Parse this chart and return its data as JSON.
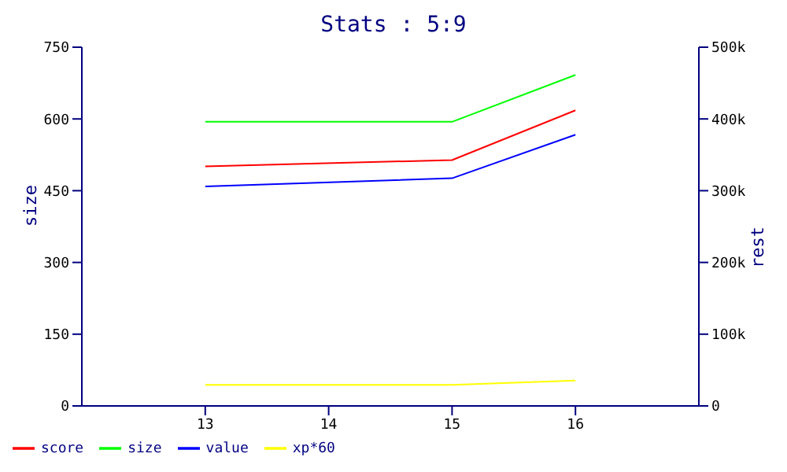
{
  "chart_data": {
    "type": "line",
    "title": "Stats : 5:9",
    "ylabel": "size",
    "y2label": "rest",
    "x": [
      13,
      15,
      16
    ],
    "xlim": [
      12,
      17
    ],
    "xticks": [
      13,
      14,
      15,
      16
    ],
    "ylim": [
      0,
      750
    ],
    "yticks": [
      0,
      150,
      300,
      450,
      600,
      750
    ],
    "y2lim": [
      0,
      500000
    ],
    "y2ticks": [
      {
        "value": 0,
        "label": "0"
      },
      {
        "value": 100000,
        "label": "100k"
      },
      {
        "value": 200000,
        "label": "200k"
      },
      {
        "value": 300000,
        "label": "300k"
      },
      {
        "value": 400000,
        "label": "400k"
      },
      {
        "value": 500000,
        "label": "500k"
      }
    ],
    "series": [
      {
        "name": "score",
        "color": "#ff0000",
        "values": [
          501,
          514,
          618
        ]
      },
      {
        "name": "size",
        "color": "#00ff00",
        "values": [
          594,
          594,
          692
        ]
      },
      {
        "name": "value",
        "color": "#0000ff",
        "values": [
          459,
          476,
          567
        ]
      },
      {
        "name": "xp*60",
        "color": "#ffff00",
        "values": [
          44,
          44,
          53
        ]
      }
    ],
    "legend": "bottom left",
    "marker": "none",
    "line_style": "solid"
  }
}
